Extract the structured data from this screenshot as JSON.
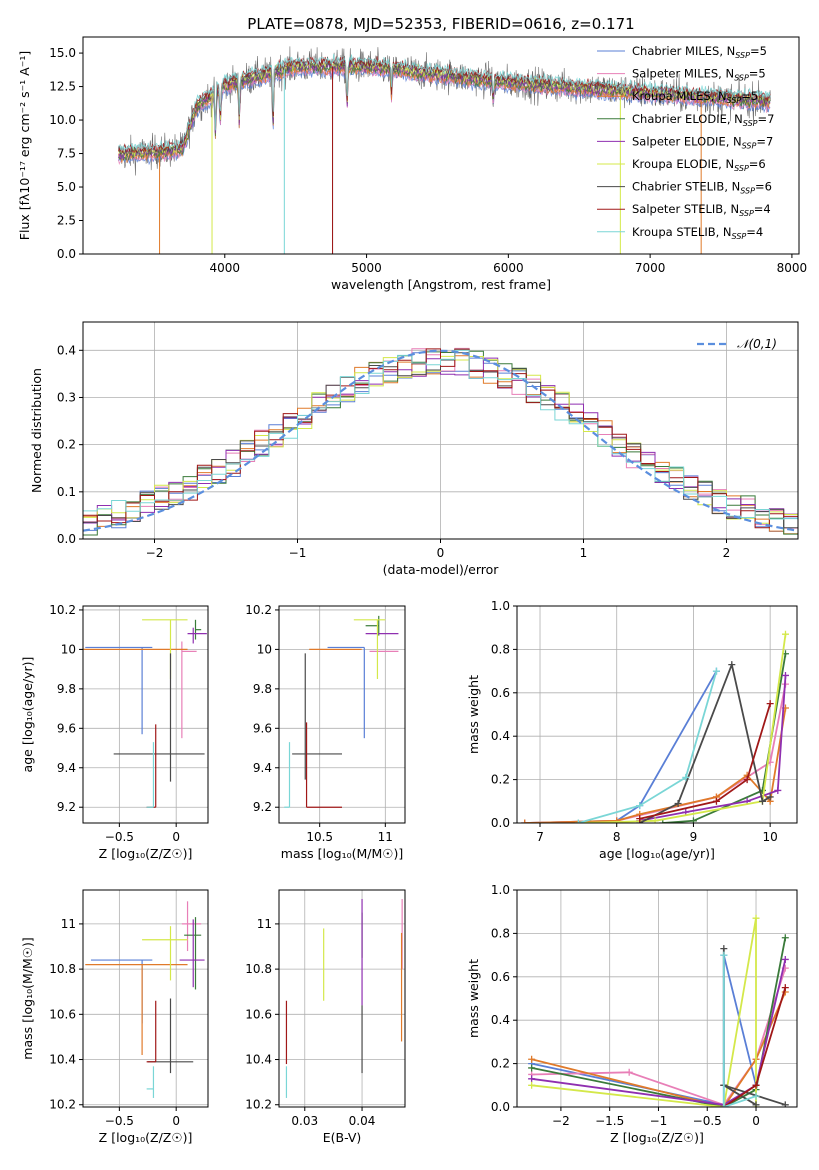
{
  "title": "PLATE=0878, MJD=52353, FIBERID=0616, z=0.171",
  "colors": {
    "Chabrier MILES": "#5a7fd6",
    "Salpeter MILES": "#e87fb7",
    "Kroupa MILES": "#e07a2a",
    "Chabrier ELODIE": "#3a7a3a",
    "Salpeter ELODIE": "#8f2fb0",
    "Kroupa ELODIE": "#d4e84a",
    "Chabrier STELIB": "#4a4a4a",
    "Salpeter STELIB": "#a01818",
    "Kroupa STELIB": "#7ad6d6"
  },
  "chart_data": [
    {
      "id": "spectrum",
      "type": "line",
      "xlabel": "wavelength [Angstrom, rest frame]",
      "ylabel": "Flux [fλ10⁻¹⁷ erg cm⁻² s⁻¹ A⁻¹]",
      "xlim": [
        3000,
        8050
      ],
      "ylim": [
        0,
        16.2
      ],
      "xticks": [
        4000,
        5000,
        6000,
        7000,
        8000
      ],
      "yticks": [
        0.0,
        2.5,
        5.0,
        7.5,
        10.0,
        12.5,
        15.0
      ],
      "legend": [
        "Chabrier MILES, N_SSP=5",
        "Salpeter MILES, N_SSP=5",
        "Kroupa MILES, N_SSP=5",
        "Chabrier ELODIE, N_SSP=7",
        "Salpeter ELODIE, N_SSP=7",
        "Kroupa ELODIE, N_SSP=6",
        "Chabrier STELIB, N_SSP=6",
        "Salpeter STELIB, N_SSP=4",
        "Kroupa STELIB, N_SSP=4"
      ],
      "legend_placement": "upper-right",
      "continuum": {
        "x": [
          3250,
          3700,
          3800,
          4000,
          4500,
          5000,
          5500,
          6000,
          6500,
          7000,
          7500,
          7850
        ],
        "y": [
          7.4,
          7.8,
          11.0,
          12.6,
          14.0,
          14.0,
          13.4,
          12.8,
          12.4,
          12.0,
          11.6,
          11.4
        ]
      }
    },
    {
      "id": "residuals",
      "type": "step",
      "xlabel": "(data-model)/error",
      "ylabel": "Normed distribution",
      "xlim": [
        -2.5,
        2.5
      ],
      "ylim": [
        0,
        0.46
      ],
      "xticks": [
        -2,
        -1,
        0,
        1,
        2
      ],
      "yticks": [
        0.0,
        0.1,
        0.2,
        0.3,
        0.4
      ],
      "grid": true,
      "legend": [
        "𝒩(0,1)"
      ],
      "legend_placement": "upper-right"
    },
    {
      "id": "age-vs-Z",
      "type": "errorbar",
      "xlabel": "Z [log₁₀(Z/Z☉)]",
      "ylabel": "age  [log₁₀(age/yr)]",
      "xlim": [
        -0.82,
        0.28
      ],
      "ylim": [
        9.12,
        10.22
      ],
      "xticks": [
        -0.5,
        0.0
      ],
      "yticks": [
        9.2,
        9.4,
        9.6,
        9.8,
        10.0,
        10.2
      ],
      "grid": true,
      "points": [
        {
          "model": "Chabrier MILES",
          "x": -0.3,
          "y": 10.01,
          "xerr": [
            0.5,
            0.09
          ],
          "yerr": [
            0.44,
            0.0
          ]
        },
        {
          "model": "Salpeter MILES",
          "x": 0.05,
          "y": 9.99,
          "xerr": [
            0.0,
            0.13
          ],
          "yerr": [
            0.44,
            0.05
          ]
        },
        {
          "model": "Kroupa MILES",
          "x": -0.3,
          "y": 10.0,
          "xerr": [
            0.55,
            0.4
          ],
          "yerr": [
            0.0,
            0.0
          ]
        },
        {
          "model": "Chabrier ELODIE",
          "x": 0.17,
          "y": 10.1,
          "xerr": [
            0.0,
            0.05
          ],
          "yerr": [
            0.05,
            0.05
          ]
        },
        {
          "model": "Salpeter ELODIE",
          "x": 0.15,
          "y": 10.08,
          "xerr": [
            0.05,
            0.12
          ],
          "yerr": [
            0.05,
            0.03
          ]
        },
        {
          "model": "Kroupa ELODIE",
          "x": -0.05,
          "y": 10.15,
          "xerr": [
            0.25,
            0.15
          ],
          "yerr": [
            0.3,
            0.0
          ]
        },
        {
          "model": "Chabrier STELIB",
          "x": -0.05,
          "y": 9.47,
          "xerr": [
            0.5,
            0.3
          ],
          "yerr": [
            0.14,
            0.51
          ]
        },
        {
          "model": "Salpeter STELIB",
          "x": -0.18,
          "y": 9.2,
          "xerr": [
            0.08,
            0.0
          ],
          "yerr": [
            0.0,
            0.42
          ]
        },
        {
          "model": "Kroupa STELIB",
          "x": -0.2,
          "y": 9.2,
          "xerr": [
            0.06,
            0.0
          ],
          "yerr": [
            0.0,
            0.33
          ]
        }
      ]
    },
    {
      "id": "age-vs-mass",
      "type": "errorbar",
      "xlabel": "mass [log₁₀(M/M☉)]",
      "ylabel": "",
      "xlim": [
        10.19,
        11.15
      ],
      "ylim": [
        9.12,
        10.22
      ],
      "xticks": [
        10.5,
        11.0
      ],
      "yticks": [
        9.2,
        9.4,
        9.6,
        9.8,
        10.0,
        10.2
      ],
      "grid": true,
      "points": [
        {
          "model": "Chabrier MILES",
          "x": 10.84,
          "y": 10.01,
          "xerr": [
            0.28,
            0.0
          ],
          "yerr": [
            0.46,
            0.0
          ]
        },
        {
          "model": "Salpeter MILES",
          "x": 11.0,
          "y": 9.99,
          "xerr": [
            0.12,
            0.1
          ],
          "yerr": [
            0.0,
            0.0
          ]
        },
        {
          "model": "Kroupa MILES",
          "x": 10.82,
          "y": 10.0,
          "xerr": [
            0.4,
            0.0
          ],
          "yerr": [
            0.0,
            0.0
          ]
        },
        {
          "model": "Chabrier ELODIE",
          "x": 10.95,
          "y": 10.12,
          "xerr": [
            0.1,
            0.0
          ],
          "yerr": [
            0.05,
            0.05
          ]
        },
        {
          "model": "Salpeter ELODIE",
          "x": 11.0,
          "y": 10.08,
          "xerr": [
            0.15,
            0.1
          ],
          "yerr": [
            0.0,
            0.0
          ]
        },
        {
          "model": "Kroupa ELODIE",
          "x": 10.94,
          "y": 10.15,
          "xerr": [
            0.18,
            0.06
          ],
          "yerr": [
            0.3,
            0.0
          ]
        },
        {
          "model": "Chabrier STELIB",
          "x": 10.39,
          "y": 9.47,
          "xerr": [
            0.1,
            0.28
          ],
          "yerr": [
            0.13,
            0.51
          ]
        },
        {
          "model": "Salpeter STELIB",
          "x": 10.4,
          "y": 9.2,
          "xerr": [
            0.0,
            0.27
          ],
          "yerr": [
            0.0,
            0.43
          ]
        },
        {
          "model": "Kroupa STELIB",
          "x": 10.27,
          "y": 9.2,
          "xerr": [
            0.04,
            0.0
          ],
          "yerr": [
            0.0,
            0.33
          ]
        }
      ]
    },
    {
      "id": "mass-weight-vs-age",
      "type": "line",
      "xlabel": "age  [log₁₀(age/yr)]",
      "ylabel": "mass weight",
      "xlim": [
        6.7,
        10.35
      ],
      "ylim": [
        0,
        1.0
      ],
      "xticks": [
        7,
        8,
        9,
        10
      ],
      "yticks": [
        0.0,
        0.2,
        0.4,
        0.6,
        0.8,
        1.0
      ],
      "grid": true,
      "series": [
        {
          "name": "Chabrier MILES",
          "x": [
            6.8,
            8.0,
            8.3,
            9.3
          ],
          "y": [
            0.0,
            0.01,
            0.08,
            0.7
          ]
        },
        {
          "name": "Salpeter MILES",
          "x": [
            6.8,
            8.0,
            9.3,
            10.0,
            10.2
          ],
          "y": [
            0.0,
            0.01,
            0.12,
            0.28,
            0.64
          ]
        },
        {
          "name": "Kroupa MILES",
          "x": [
            6.8,
            8.0,
            8.3,
            9.3,
            9.7,
            10.0,
            10.2
          ],
          "y": [
            0.0,
            0.01,
            0.04,
            0.12,
            0.22,
            0.1,
            0.53
          ]
        },
        {
          "name": "Chabrier ELODIE",
          "x": [
            8.6,
            9.0,
            9.9,
            10.2
          ],
          "y": [
            0.0,
            0.01,
            0.15,
            0.78
          ]
        },
        {
          "name": "Salpeter ELODIE",
          "x": [
            8.3,
            8.9,
            9.7,
            10.1,
            10.2
          ],
          "y": [
            0.01,
            0.05,
            0.1,
            0.15,
            0.68
          ]
        },
        {
          "name": "Kroupa ELODIE",
          "x": [
            7.5,
            8.5,
            9.9,
            10.2
          ],
          "y": [
            0.0,
            0.01,
            0.1,
            0.87
          ]
        },
        {
          "name": "Chabrier STELIB",
          "x": [
            8.3,
            8.8,
            9.5,
            9.9,
            10.0
          ],
          "y": [
            0.0,
            0.09,
            0.73,
            0.1,
            0.12
          ]
        },
        {
          "name": "Salpeter STELIB",
          "x": [
            8.3,
            9.3,
            9.7,
            10.0
          ],
          "y": [
            0.02,
            0.1,
            0.2,
            0.55
          ]
        },
        {
          "name": "Kroupa STELIB",
          "x": [
            7.5,
            8.3,
            8.9,
            9.3
          ],
          "y": [
            0.0,
            0.08,
            0.21,
            0.7
          ]
        }
      ]
    },
    {
      "id": "mass-vs-Z",
      "type": "errorbar",
      "xlabel": "Z [log₁₀(Z/Z☉)]",
      "ylabel": "mass [log₁₀(M/M☉)]",
      "xlim": [
        -0.82,
        0.28
      ],
      "ylim": [
        10.19,
        11.15
      ],
      "xticks": [
        -0.5,
        0.0
      ],
      "yticks": [
        10.2,
        10.4,
        10.6,
        10.8,
        11.0
      ],
      "grid": true,
      "points": [
        {
          "model": "Chabrier MILES",
          "x": -0.3,
          "y": 10.84,
          "xerr": [
            0.45,
            0.09
          ],
          "yerr": [
            0.28,
            0.0
          ]
        },
        {
          "model": "Salpeter MILES",
          "x": 0.1,
          "y": 11.0,
          "xerr": [
            0.05,
            0.12
          ],
          "yerr": [
            0.12,
            0.1
          ]
        },
        {
          "model": "Kroupa MILES",
          "x": -0.3,
          "y": 10.82,
          "xerr": [
            0.5,
            0.4
          ],
          "yerr": [
            0.4,
            0.0
          ]
        },
        {
          "model": "Chabrier ELODIE",
          "x": 0.17,
          "y": 10.95,
          "xerr": [
            0.1,
            0.05
          ],
          "yerr": [
            0.24,
            0.08
          ]
        },
        {
          "model": "Salpeter ELODIE",
          "x": 0.15,
          "y": 10.84,
          "xerr": [
            0.12,
            0.1
          ],
          "yerr": [
            0.12,
            0.18
          ]
        },
        {
          "model": "Kroupa ELODIE",
          "x": -0.05,
          "y": 10.93,
          "xerr": [
            0.25,
            0.15
          ],
          "yerr": [
            0.18,
            0.06
          ]
        },
        {
          "model": "Chabrier STELIB",
          "x": -0.05,
          "y": 10.39,
          "xerr": [
            0.2,
            0.2
          ],
          "yerr": [
            0.05,
            0.28
          ]
        },
        {
          "model": "Salpeter STELIB",
          "x": -0.18,
          "y": 10.39,
          "xerr": [
            0.08,
            0.0
          ],
          "yerr": [
            0.0,
            0.27
          ]
        },
        {
          "model": "Kroupa STELIB",
          "x": -0.2,
          "y": 10.27,
          "xerr": [
            0.06,
            0.0
          ],
          "yerr": [
            0.04,
            0.1
          ]
        }
      ]
    },
    {
      "id": "mass-vs-EBV",
      "type": "errorbar",
      "xlabel": "E(B-V)",
      "ylabel": "",
      "xlim": [
        0.0255,
        0.0475
      ],
      "ylim": [
        10.19,
        11.15
      ],
      "xticks": [
        0.03,
        0.04
      ],
      "yticks": [
        10.2,
        10.4,
        10.6,
        10.8,
        11.0
      ],
      "grid": true,
      "points": [
        {
          "model": "Chabrier MILES",
          "x": 0.04,
          "y": 10.84,
          "yerr": [
            0.0,
            0.0
          ]
        },
        {
          "model": "Salpeter MILES",
          "x": 0.047,
          "y": 11.0,
          "yerr": [
            0.2,
            0.11
          ]
        },
        {
          "model": "Kroupa MILES",
          "x": 0.0469,
          "y": 10.82,
          "yerr": [
            0.34,
            0.14
          ]
        },
        {
          "model": "Chabrier ELODIE",
          "x": 0.04,
          "y": 10.95,
          "yerr": [
            0.1,
            0.1
          ]
        },
        {
          "model": "Salpeter ELODIE",
          "x": 0.04,
          "y": 10.84,
          "yerr": [
            0.2,
            0.27
          ]
        },
        {
          "model": "Kroupa ELODIE",
          "x": 0.0333,
          "y": 10.82,
          "yerr": [
            0.16,
            0.16
          ]
        },
        {
          "model": "Chabrier STELIB",
          "x": 0.04,
          "y": 10.39,
          "yerr": [
            0.05,
            0.25
          ]
        },
        {
          "model": "Salpeter STELIB",
          "x": 0.0268,
          "y": 10.52,
          "yerr": [
            0.14,
            0.14
          ]
        },
        {
          "model": "Kroupa STELIB",
          "x": 0.0268,
          "y": 10.3,
          "yerr": [
            0.07,
            0.07
          ]
        }
      ]
    },
    {
      "id": "mass-weight-vs-Z",
      "type": "line",
      "xlabel": "Z [log₁₀(Z/Z☉)]",
      "ylabel": "mass weight",
      "xlim": [
        -2.45,
        0.42
      ],
      "ylim": [
        0,
        1.0
      ],
      "xticks": [
        -2.0,
        -1.5,
        -1.0,
        -0.5,
        0.0
      ],
      "yticks": [
        0.0,
        0.2,
        0.4,
        0.6,
        0.8,
        1.0
      ],
      "grid": true,
      "series": [
        {
          "name": "Chabrier MILES",
          "x": [
            -2.3,
            -0.33,
            -0.33,
            0.0
          ],
          "y": [
            0.2,
            0.01,
            0.7,
            0.1
          ]
        },
        {
          "name": "Salpeter MILES",
          "x": [
            -2.3,
            -1.3,
            -0.33,
            0.0,
            0.3
          ],
          "y": [
            0.15,
            0.16,
            0.01,
            0.22,
            0.64
          ]
        },
        {
          "name": "Kroupa MILES",
          "x": [
            -2.3,
            -0.33,
            0.0,
            0.3
          ],
          "y": [
            0.22,
            0.0,
            0.22,
            0.53
          ]
        },
        {
          "name": "Chabrier ELODIE",
          "x": [
            -2.3,
            -0.33,
            0.0,
            0.3
          ],
          "y": [
            0.18,
            0.0,
            0.08,
            0.78
          ]
        },
        {
          "name": "Salpeter ELODIE",
          "x": [
            -2.3,
            -0.33,
            0.0,
            0.3
          ],
          "y": [
            0.13,
            0.01,
            0.1,
            0.68
          ]
        },
        {
          "name": "Kroupa ELODIE",
          "x": [
            -2.3,
            -0.33,
            0.0,
            0.0
          ],
          "y": [
            0.1,
            0.0,
            0.87,
            0.0
          ]
        },
        {
          "name": "Chabrier STELIB",
          "x": [
            -0.33,
            -0.33,
            0.0,
            -0.33,
            0.3
          ],
          "y": [
            0.73,
            0.1,
            0.01,
            0.1,
            0.01
          ]
        },
        {
          "name": "Salpeter STELIB",
          "x": [
            -0.33,
            0.0,
            0.3
          ],
          "y": [
            0.0,
            0.1,
            0.55
          ]
        },
        {
          "name": "Kroupa STELIB",
          "x": [
            -0.33,
            -0.33,
            0.0
          ],
          "y": [
            0.7,
            0.0,
            0.05
          ]
        }
      ]
    }
  ]
}
